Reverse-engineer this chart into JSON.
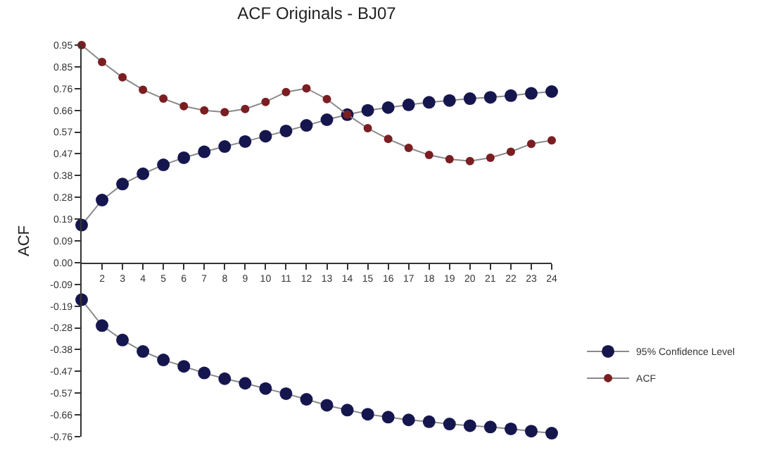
{
  "chart_data": {
    "type": "line",
    "title": "ACF Originals - BJ07",
    "ylabel": "ACF",
    "x": [
      1,
      2,
      3,
      4,
      5,
      6,
      7,
      8,
      9,
      10,
      11,
      12,
      13,
      14,
      15,
      16,
      17,
      18,
      19,
      20,
      21,
      22,
      23,
      24
    ],
    "series": [
      {
        "name": "95% Confidence Level",
        "color": "#16164f",
        "values": [
          0.164,
          0.273,
          0.343,
          0.388,
          0.427,
          0.458,
          0.484,
          0.507,
          0.529,
          0.552,
          0.575,
          0.599,
          0.624,
          0.646,
          0.665,
          0.677,
          0.689,
          0.7,
          0.708,
          0.716,
          0.722,
          0.729,
          0.739,
          0.747
        ]
      },
      {
        "color": "#16164f",
        "values": [
          -0.162,
          -0.275,
          -0.338,
          -0.388,
          -0.425,
          -0.453,
          -0.482,
          -0.507,
          -0.527,
          -0.55,
          -0.572,
          -0.597,
          -0.623,
          -0.644,
          -0.662,
          -0.675,
          -0.687,
          -0.695,
          -0.705,
          -0.712,
          -0.718,
          -0.726,
          -0.736,
          -0.745
        ]
      },
      {
        "name": "ACF",
        "color": "#7a1e22",
        "values": [
          0.95,
          0.876,
          0.809,
          0.755,
          0.716,
          0.683,
          0.665,
          0.657,
          0.671,
          0.702,
          0.745,
          0.761,
          0.714,
          0.646,
          0.587,
          0.54,
          0.501,
          0.47,
          0.452,
          0.443,
          0.458,
          0.484,
          0.519,
          0.534
        ]
      }
    ],
    "xlim": [
      1,
      24
    ],
    "xticks": [
      2,
      3,
      4,
      5,
      6,
      7,
      8,
      9,
      10,
      11,
      12,
      13,
      14,
      15,
      16,
      17,
      18,
      19,
      20,
      21,
      22,
      23,
      24
    ],
    "ylim": [
      -0.76,
      0.95
    ],
    "yticks": [
      0.95,
      {
        "value": 0.855,
        "label": "0.85"
      },
      0.76,
      {
        "value": 0.665,
        "label": "0.66"
      },
      0.57,
      {
        "value": 0.475,
        "label": "0.47"
      },
      0.38,
      {
        "value": 0.285,
        "label": "0.28"
      },
      0.19,
      {
        "value": 0.095,
        "label": "0.09"
      },
      {
        "value": 0,
        "label": "0.00"
      },
      {
        "value": -0.095,
        "label": "-0.09"
      },
      -0.19,
      {
        "value": -0.285,
        "label": "-0.28"
      },
      -0.38,
      {
        "value": -0.475,
        "label": "-0.47"
      },
      -0.57,
      {
        "value": -0.665,
        "label": "-0.66"
      },
      -0.76
    ],
    "grid": false,
    "legend": "right",
    "marker": "circle",
    "line_style": "solid"
  }
}
